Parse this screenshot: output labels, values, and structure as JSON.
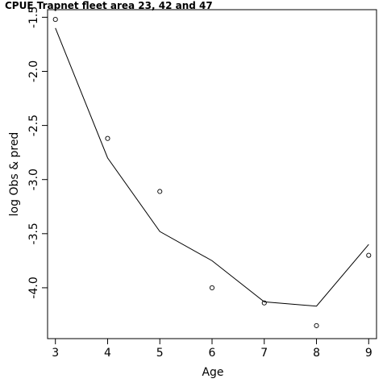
{
  "chart_data": {
    "type": "line",
    "title": "CPUE Trapnet fleet area 23, 42 and 47",
    "xlabel": "Age",
    "ylabel": "log Obs & pred",
    "xlim": [
      2.85,
      9.15
    ],
    "ylim": [
      -4.47,
      -1.43
    ],
    "x_ticks": [
      3,
      4,
      5,
      6,
      7,
      8,
      9
    ],
    "x_tick_labels": [
      "3",
      "4",
      "5",
      "6",
      "7",
      "8",
      "9"
    ],
    "y_ticks": [
      -1.5,
      -2.0,
      -2.5,
      -3.0,
      -3.5,
      -4.0
    ],
    "y_tick_labels": [
      "-1.5",
      "-2.0",
      "-2.5",
      "-3.0",
      "-3.5",
      "-4.0"
    ],
    "series": [
      {
        "style": "points",
        "marker": "open-circle",
        "x": [
          3,
          4,
          5,
          6,
          7,
          8,
          9
        ],
        "y": [
          -1.52,
          -2.62,
          -3.11,
          -4.0,
          -4.14,
          -4.35,
          -3.7
        ]
      },
      {
        "style": "line",
        "x": [
          3,
          4,
          5,
          6,
          7,
          8,
          9
        ],
        "y": [
          -1.6,
          -2.8,
          -3.48,
          -3.75,
          -4.13,
          -4.17,
          -3.6
        ]
      }
    ],
    "grid": false,
    "colors": {
      "line": "#000000",
      "points": "#000000",
      "axes": "#000000"
    }
  }
}
